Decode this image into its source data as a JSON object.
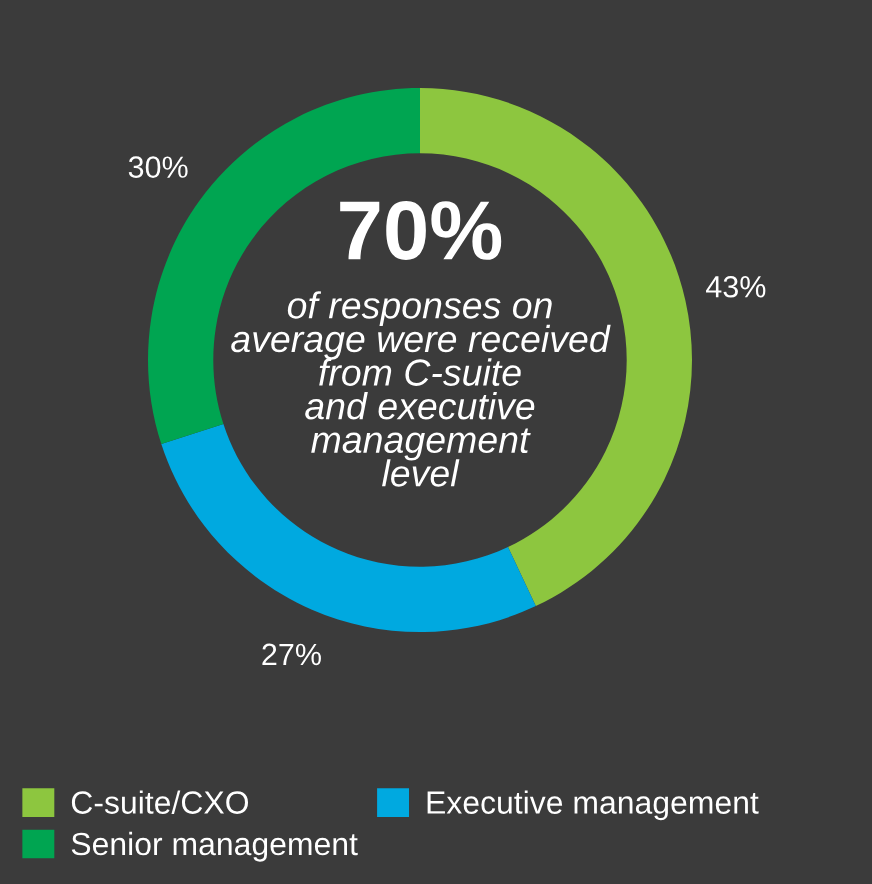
{
  "chart_data": {
    "type": "donut",
    "categories": [
      "C-suite/CXO",
      "Executive management",
      "Senior management"
    ],
    "values": [
      43,
      27,
      30
    ],
    "colors": [
      "#8dc63f",
      "#00a9e0",
      "#00a551"
    ],
    "value_labels": [
      "43%",
      "27%",
      "30%"
    ],
    "annotations": [
      "70%",
      "of responses on\naverage were received\nfrom C-suite\nand executive\nmanagement\nlevel"
    ],
    "legend": "bottom left"
  }
}
